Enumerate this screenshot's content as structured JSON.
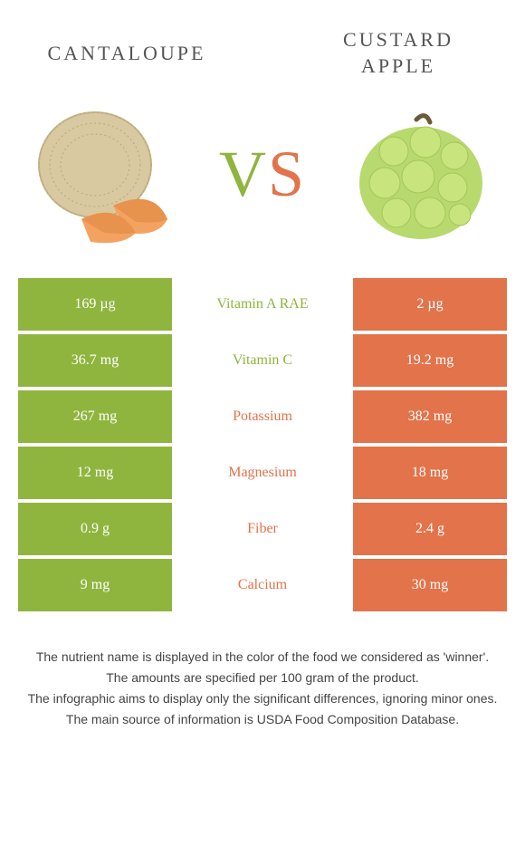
{
  "header": {
    "left_title": "CANTALOUPE",
    "right_title": "CUSTARD APPLE"
  },
  "vs": {
    "v": "V",
    "s": "S"
  },
  "colors": {
    "left": "#8fb53e",
    "right": "#e2734a",
    "background": "#ffffff"
  },
  "table": {
    "rows": [
      {
        "left": "169 µg",
        "label": "Vitamin A RAE",
        "right": "2 µg",
        "winner": "left"
      },
      {
        "left": "36.7 mg",
        "label": "Vitamin C",
        "right": "19.2 mg",
        "winner": "left"
      },
      {
        "left": "267 mg",
        "label": "Potassium",
        "right": "382 mg",
        "winner": "right"
      },
      {
        "left": "12 mg",
        "label": "Magnesium",
        "right": "18 mg",
        "winner": "right"
      },
      {
        "left": "0.9 g",
        "label": "Fiber",
        "right": "2.4 g",
        "winner": "right"
      },
      {
        "left": "9 mg",
        "label": "Calcium",
        "right": "30 mg",
        "winner": "right"
      }
    ]
  },
  "footnotes": [
    "The nutrient name is displayed in the color of the food we considered as 'winner'.",
    "The amounts are specified per 100 gram of the product.",
    "The infographic aims to display only the significant differences, ignoring minor ones.",
    "The main source of information is USDA Food Composition Database."
  ],
  "images": {
    "left_alt": "cantaloupe",
    "right_alt": "custard-apple"
  }
}
